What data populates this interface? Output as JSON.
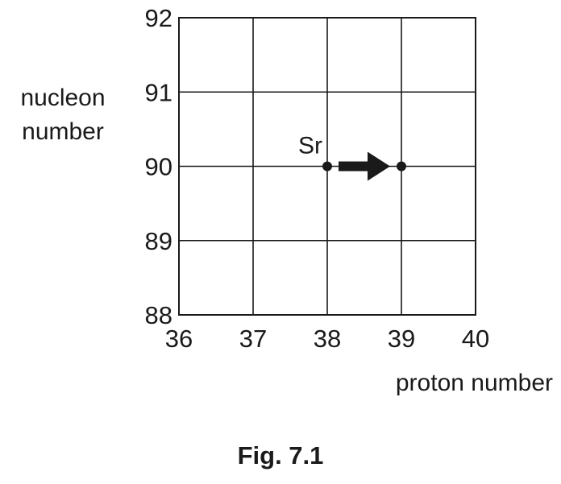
{
  "chart_data": {
    "type": "scatter",
    "xlabel": "proton number",
    "ylabel_lines": [
      "nucleon",
      "number"
    ],
    "xlim": [
      36,
      40
    ],
    "ylim": [
      88,
      92
    ],
    "x_ticks": [
      "36",
      "37",
      "38",
      "39",
      "40"
    ],
    "y_ticks": [
      "88",
      "89",
      "90",
      "91",
      "92"
    ],
    "grid": true,
    "points": [
      {
        "label": "Sr",
        "x": 38,
        "y": 90
      },
      {
        "label": "",
        "x": 39,
        "y": 90
      }
    ],
    "arrow": {
      "from": [
        38,
        90
      ],
      "to": [
        39,
        90
      ]
    }
  },
  "caption": "Fig. 7.1",
  "colors": {
    "ink": "#1a1a1a",
    "grid": "#1a1a1a"
  }
}
